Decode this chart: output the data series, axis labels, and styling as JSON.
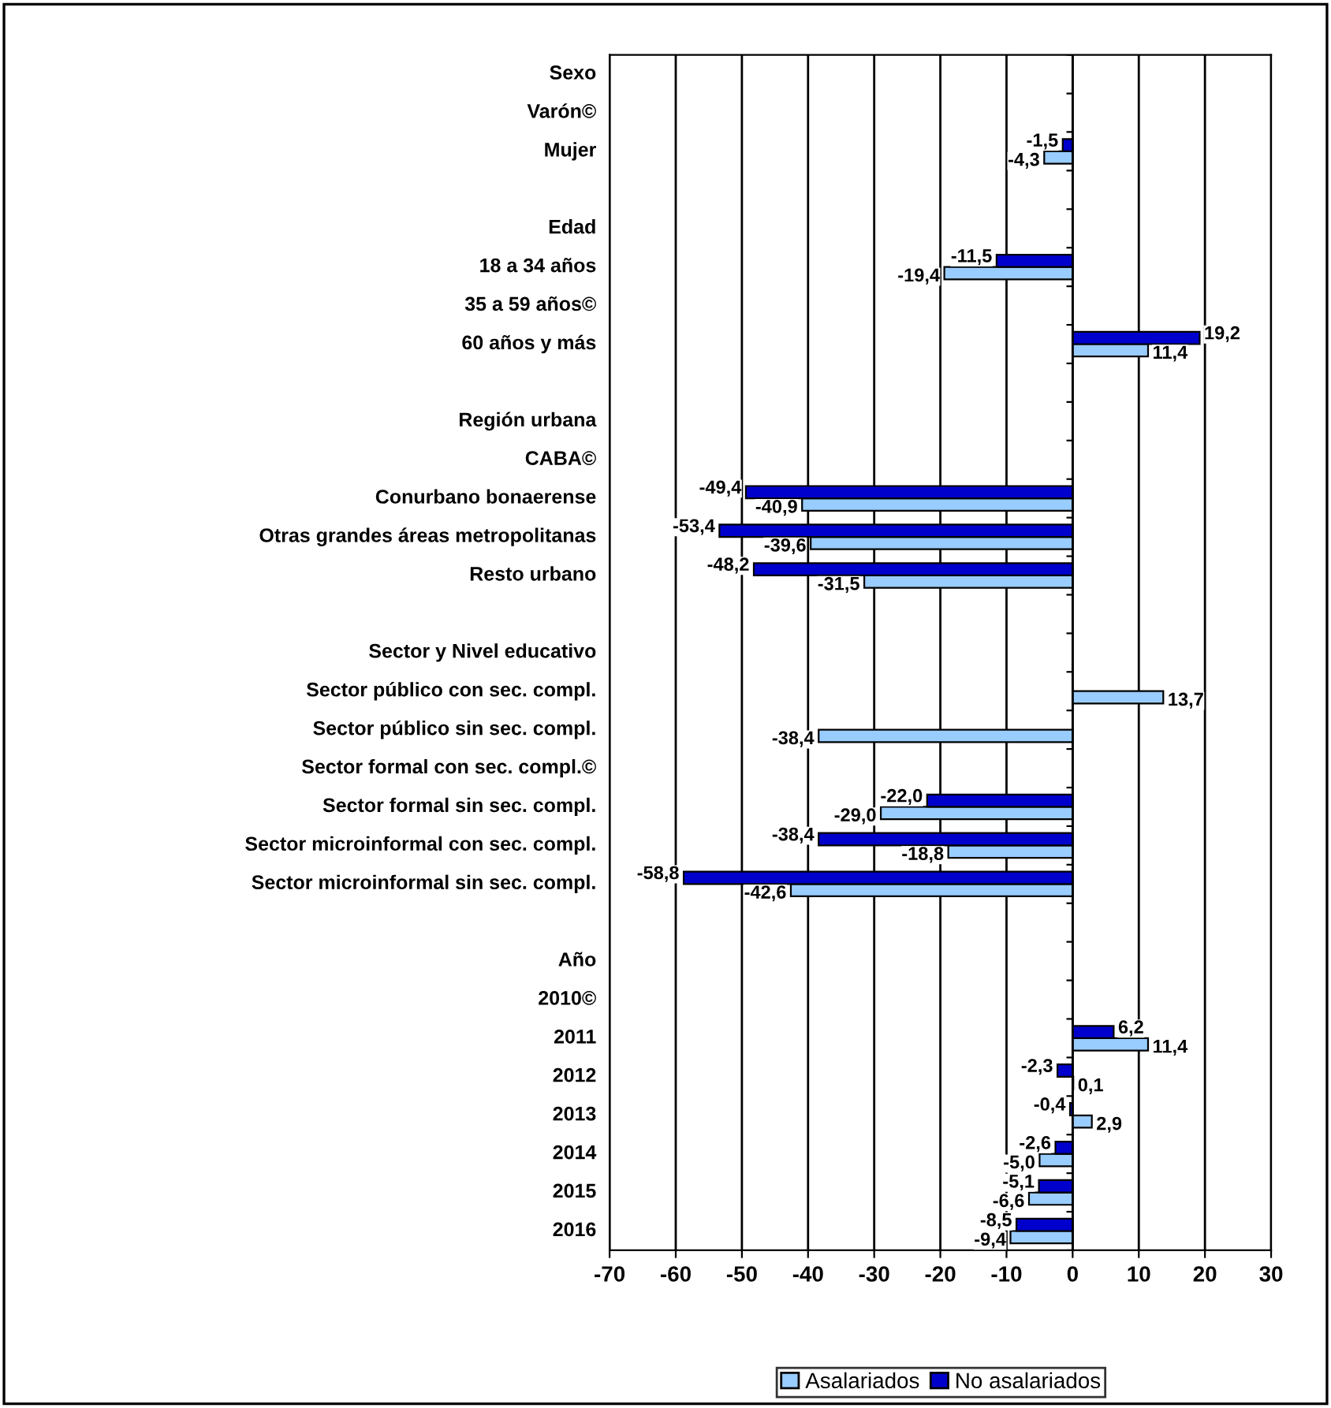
{
  "chart_data": {
    "type": "bar",
    "orientation": "horizontal",
    "categories": [
      "Sexo",
      "Varón©",
      "Mujer",
      null,
      "Edad",
      "18 a 34 años",
      "35 a 59 años©",
      "60 años y más",
      null,
      "Región urbana",
      "CABA©",
      "Conurbano bonaerense",
      "Otras grandes áreas metropolitanas",
      "Resto urbano",
      null,
      "Sector y Nivel educativo",
      "Sector público con sec. compl.",
      "Sector público sin sec. compl.",
      "Sector formal con sec. compl.©",
      "Sector formal sin sec. compl.",
      "Sector microinformal con sec. compl.",
      "Sector microinformal sin sec. compl.",
      null,
      "Año",
      "2010©",
      "2011",
      "2012",
      "2013",
      "2014",
      "2015",
      "2016"
    ],
    "series": [
      {
        "name": "Asalariados",
        "color": "#99ccff",
        "values": [
          null,
          null,
          -4.3,
          null,
          null,
          -19.4,
          null,
          11.4,
          null,
          null,
          null,
          -40.9,
          -39.6,
          -31.5,
          null,
          null,
          13.7,
          -38.4,
          null,
          -29.0,
          -18.8,
          -42.6,
          null,
          null,
          null,
          11.4,
          0.1,
          2.9,
          -5.0,
          -6.6,
          -9.4
        ],
        "value_labels": [
          null,
          null,
          "-4,3",
          null,
          null,
          "-19,4",
          null,
          "11,4",
          null,
          null,
          null,
          "-40,9",
          "-39,6",
          "-31,5",
          null,
          null,
          "13,7",
          "-38,4",
          null,
          "-29,0",
          "-18,8",
          "-42,6",
          null,
          null,
          null,
          "11,4",
          "0,1",
          "2,9",
          "-5,0",
          "-6,6",
          "-9,4"
        ]
      },
      {
        "name": "No asalariados",
        "color": "#0000cc",
        "values": [
          null,
          null,
          -1.5,
          null,
          null,
          -11.5,
          null,
          19.2,
          null,
          null,
          null,
          -49.4,
          -53.4,
          -48.2,
          null,
          null,
          null,
          null,
          null,
          -22.0,
          -38.4,
          -58.8,
          null,
          null,
          null,
          6.2,
          -2.3,
          -0.4,
          -2.6,
          -5.1,
          -8.5
        ],
        "value_labels": [
          null,
          null,
          "-1,5",
          null,
          null,
          "-11,5",
          null,
          "19,2",
          null,
          null,
          null,
          "-49,4",
          "-53,4",
          "-48,2",
          null,
          null,
          null,
          null,
          null,
          "-22,0",
          "-38,4",
          "-58,8",
          null,
          null,
          null,
          "6,2",
          "-2,3",
          "-0,4",
          "-2,6",
          "-5,1",
          "-8,5"
        ]
      }
    ],
    "xlim": [
      -70,
      30
    ],
    "xticks": [
      -70,
      -60,
      -50,
      -40,
      -30,
      -20,
      -10,
      0,
      10,
      20,
      30
    ],
    "grid": "x",
    "legend": "bottom"
  }
}
